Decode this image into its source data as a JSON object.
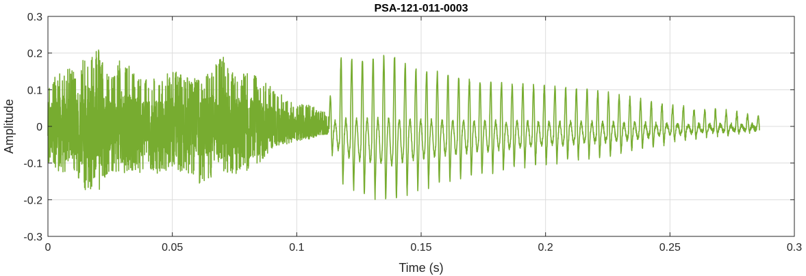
{
  "chart_data": {
    "type": "line",
    "title": "PSA-121-011-0003",
    "xlabel": "Time (s)",
    "ylabel": "Amplitude",
    "xlim": [
      0,
      0.3
    ],
    "ylim": [
      -0.3,
      0.3
    ],
    "x_ticks": [
      0,
      0.05,
      0.1,
      0.15,
      0.2,
      0.25,
      0.3
    ],
    "x_tick_labels": [
      "0",
      "0.05",
      "0.1",
      "0.15",
      "0.2",
      "0.25",
      "0.3"
    ],
    "y_ticks": [
      -0.3,
      -0.2,
      -0.1,
      0,
      0.1,
      0.2,
      0.3
    ],
    "y_tick_labels": [
      "-0.3",
      "-0.2",
      "-0.1",
      "0",
      "0.1",
      "0.2",
      "0.3"
    ],
    "grid": true,
    "series": [
      {
        "color": "#77AC30",
        "envelope": {
          "t": [
            0,
            0.005,
            0.01,
            0.015,
            0.02,
            0.025,
            0.03,
            0.035,
            0.04,
            0.045,
            0.05,
            0.055,
            0.06,
            0.065,
            0.07,
            0.075,
            0.08,
            0.085,
            0.09,
            0.095,
            0.1,
            0.105,
            0.11,
            0.113
          ],
          "upper": [
            0.12,
            0.15,
            0.16,
            0.2,
            0.22,
            0.13,
            0.2,
            0.14,
            0.15,
            0.12,
            0.16,
            0.14,
            0.13,
            0.15,
            0.2,
            0.14,
            0.16,
            0.13,
            0.11,
            0.08,
            0.06,
            0.06,
            0.045,
            0.03
          ],
          "lower": [
            -0.1,
            -0.13,
            -0.12,
            -0.18,
            -0.2,
            -0.12,
            -0.13,
            -0.14,
            -0.12,
            -0.13,
            -0.12,
            -0.13,
            -0.16,
            -0.14,
            -0.13,
            -0.13,
            -0.12,
            -0.1,
            -0.06,
            -0.05,
            -0.04,
            -0.035,
            -0.025,
            -0.02
          ]
        },
        "periodic": {
          "t_start": 0.113,
          "t_end": 0.286,
          "period": 0.0043,
          "peaks_upper": [
            [
              0.113,
              0.07
            ],
            [
              0.118,
              0.19
            ],
            [
              0.125,
              0.18
            ],
            [
              0.135,
              0.19
            ],
            [
              0.138,
              0.2
            ],
            [
              0.145,
              0.16
            ],
            [
              0.16,
              0.14
            ],
            [
              0.175,
              0.12
            ],
            [
              0.2,
              0.11
            ],
            [
              0.225,
              0.09
            ],
            [
              0.245,
              0.06
            ],
            [
              0.26,
              0.05
            ],
            [
              0.286,
              0.03
            ]
          ],
          "peaks_lower": [
            [
              0.113,
              -0.05
            ],
            [
              0.118,
              -0.15
            ],
            [
              0.125,
              -0.18
            ],
            [
              0.135,
              -0.2
            ],
            [
              0.138,
              -0.21
            ],
            [
              0.145,
              -0.18
            ],
            [
              0.16,
              -0.15
            ],
            [
              0.175,
              -0.13
            ],
            [
              0.2,
              -0.1
            ],
            [
              0.225,
              -0.08
            ],
            [
              0.245,
              -0.05
            ],
            [
              0.26,
              -0.03
            ],
            [
              0.286,
              -0.015
            ]
          ]
        }
      }
    ]
  }
}
